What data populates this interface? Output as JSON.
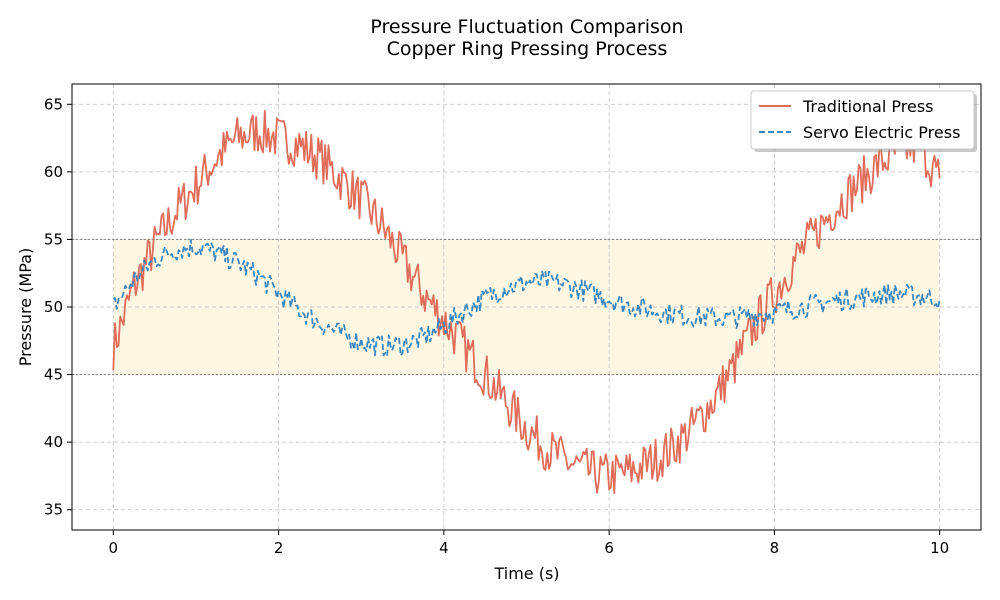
{
  "chart_data": {
    "type": "line",
    "title": [
      "Pressure Fluctuation Comparison",
      "Copper Ring Pressing Process"
    ],
    "xlabel": "Time (s)",
    "ylabel": "Pressure (MPa)",
    "xlim": [
      -0.5,
      10.5
    ],
    "ylim": [
      33.5,
      66.5
    ],
    "xticks": [
      0,
      2,
      4,
      6,
      8,
      10
    ],
    "yticks": [
      35,
      40,
      45,
      50,
      55,
      60,
      65
    ],
    "grid": true,
    "legend_position": "top-right",
    "band": {
      "ymin": 45,
      "ymax": 55,
      "color": "#fdf6e3",
      "line_color": "#808080"
    },
    "series": [
      {
        "name": "Traditional Press",
        "color": "#e06c5a",
        "style": "solid",
        "x": [
          0.0,
          0.25,
          0.5,
          0.75,
          1.0,
          1.25,
          1.5,
          1.75,
          2.0,
          2.25,
          2.5,
          2.75,
          3.0,
          3.25,
          3.5,
          3.75,
          4.0,
          4.25,
          4.5,
          4.75,
          5.0,
          5.25,
          5.5,
          5.75,
          6.0,
          6.25,
          6.5,
          6.75,
          7.0,
          7.25,
          7.5,
          7.75,
          8.0,
          8.25,
          8.5,
          8.75,
          9.0,
          9.25,
          9.5,
          9.75,
          10.0
        ],
        "values": [
          47.0,
          51.5,
          54.5,
          57.0,
          59.0,
          61.0,
          62.5,
          63.0,
          62.5,
          62.0,
          61.0,
          59.5,
          58.0,
          56.0,
          53.5,
          51.0,
          49.0,
          47.0,
          45.0,
          43.0,
          41.0,
          39.5,
          38.5,
          37.8,
          37.5,
          37.8,
          38.5,
          39.5,
          41.0,
          43.0,
          45.5,
          48.5,
          51.0,
          53.5,
          55.5,
          57.5,
          59.0,
          60.5,
          61.5,
          62.0,
          59.5
        ]
      },
      {
        "name": "Servo Electric Press",
        "color": "#3a87c0",
        "style": "dashed",
        "x": [
          0.0,
          0.25,
          0.5,
          0.75,
          1.0,
          1.25,
          1.5,
          1.75,
          2.0,
          2.25,
          2.5,
          2.75,
          3.0,
          3.25,
          3.5,
          3.75,
          4.0,
          4.25,
          4.5,
          4.75,
          5.0,
          5.25,
          5.5,
          5.75,
          6.0,
          6.25,
          6.5,
          6.75,
          7.0,
          7.25,
          7.5,
          7.75,
          8.0,
          8.25,
          8.5,
          8.75,
          9.0,
          9.25,
          9.5,
          9.75,
          10.0
        ],
        "values": [
          50.0,
          52.0,
          53.5,
          54.2,
          54.5,
          54.0,
          53.3,
          52.3,
          51.0,
          49.8,
          48.8,
          48.0,
          47.4,
          47.1,
          47.2,
          47.7,
          48.6,
          49.7,
          50.7,
          51.4,
          51.8,
          51.9,
          51.6,
          51.1,
          50.6,
          50.1,
          49.8,
          49.5,
          49.3,
          49.2,
          49.2,
          49.4,
          49.6,
          49.9,
          50.2,
          50.5,
          50.7,
          50.9,
          51.0,
          50.8,
          50.6
        ]
      }
    ]
  }
}
